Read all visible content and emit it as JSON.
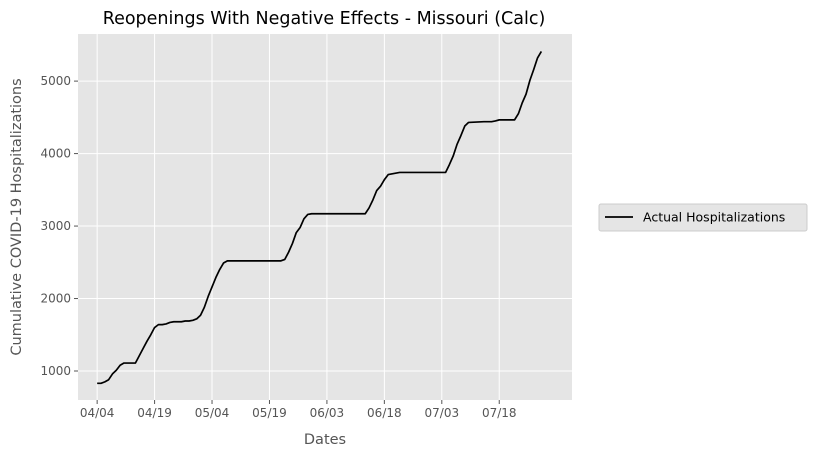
{
  "chart_data": {
    "type": "line",
    "title": "Reopenings With Negative Effects - Missouri (Calc)",
    "xlabel": "Dates",
    "ylabel": "Cumulative COVID-19 Hospitalizations",
    "x_tick_labels": [
      "04/04",
      "04/19",
      "05/04",
      "05/19",
      "06/03",
      "06/18",
      "07/03",
      "07/18"
    ],
    "x_ticks": [
      "2020-04-04",
      "2020-04-19",
      "2020-05-04",
      "2020-05-19",
      "2020-06-03",
      "2020-06-18",
      "2020-07-03",
      "2020-07-18"
    ],
    "y_ticks": [
      1000,
      2000,
      3000,
      4000,
      5000
    ],
    "y_tick_labels": [
      "1000",
      "2000",
      "3000",
      "4000",
      "5000"
    ],
    "xlim": [
      "2020-03-30",
      "2020-08-06"
    ],
    "ylim": [
      600,
      5650
    ],
    "grid": true,
    "legend_position": "right",
    "series": [
      {
        "name": "Actual Hospitalizations",
        "color": "#000000",
        "x": [
          "2020-04-04",
          "2020-04-05",
          "2020-04-06",
          "2020-04-07",
          "2020-04-08",
          "2020-04-09",
          "2020-04-10",
          "2020-04-11",
          "2020-04-12",
          "2020-04-13",
          "2020-04-14",
          "2020-04-15",
          "2020-04-16",
          "2020-04-17",
          "2020-04-18",
          "2020-04-19",
          "2020-04-20",
          "2020-04-21",
          "2020-04-22",
          "2020-04-23",
          "2020-04-24",
          "2020-04-25",
          "2020-04-26",
          "2020-04-27",
          "2020-04-28",
          "2020-04-29",
          "2020-04-30",
          "2020-05-01",
          "2020-05-02",
          "2020-05-03",
          "2020-05-04",
          "2020-05-05",
          "2020-05-06",
          "2020-05-07",
          "2020-05-08",
          "2020-05-09",
          "2020-05-10",
          "2020-05-12",
          "2020-05-14",
          "2020-05-16",
          "2020-05-18",
          "2020-05-20",
          "2020-05-22",
          "2020-05-23",
          "2020-05-24",
          "2020-05-25",
          "2020-05-26",
          "2020-05-27",
          "2020-05-28",
          "2020-05-29",
          "2020-05-30",
          "2020-06-01",
          "2020-06-04",
          "2020-06-07",
          "2020-06-10",
          "2020-06-13",
          "2020-06-14",
          "2020-06-15",
          "2020-06-16",
          "2020-06-17",
          "2020-06-18",
          "2020-06-19",
          "2020-06-22",
          "2020-06-25",
          "2020-06-28",
          "2020-07-01",
          "2020-07-03",
          "2020-07-04",
          "2020-07-05",
          "2020-07-06",
          "2020-07-07",
          "2020-07-08",
          "2020-07-09",
          "2020-07-10",
          "2020-07-12",
          "2020-07-14",
          "2020-07-16",
          "2020-07-17",
          "2020-07-18",
          "2020-07-20",
          "2020-07-22",
          "2020-07-23",
          "2020-07-24",
          "2020-07-25",
          "2020-07-26",
          "2020-07-27",
          "2020-07-28",
          "2020-07-29"
        ],
        "y": [
          830,
          830,
          850,
          880,
          960,
          1010,
          1080,
          1110,
          1110,
          1110,
          1110,
          1210,
          1310,
          1410,
          1500,
          1600,
          1640,
          1640,
          1650,
          1670,
          1680,
          1680,
          1680,
          1690,
          1690,
          1700,
          1720,
          1770,
          1880,
          2030,
          2160,
          2290,
          2400,
          2490,
          2520,
          2520,
          2520,
          2520,
          2520,
          2520,
          2520,
          2520,
          2520,
          2540,
          2640,
          2760,
          2910,
          2980,
          3100,
          3160,
          3170,
          3170,
          3170,
          3170,
          3170,
          3170,
          3250,
          3360,
          3490,
          3550,
          3640,
          3710,
          3740,
          3740,
          3740,
          3740,
          3740,
          3740,
          3850,
          3970,
          4130,
          4250,
          4380,
          4430,
          4435,
          4440,
          4440,
          4450,
          4465,
          4465,
          4465,
          4550,
          4700,
          4820,
          5010,
          5160,
          5320,
          5410
        ]
      }
    ]
  }
}
